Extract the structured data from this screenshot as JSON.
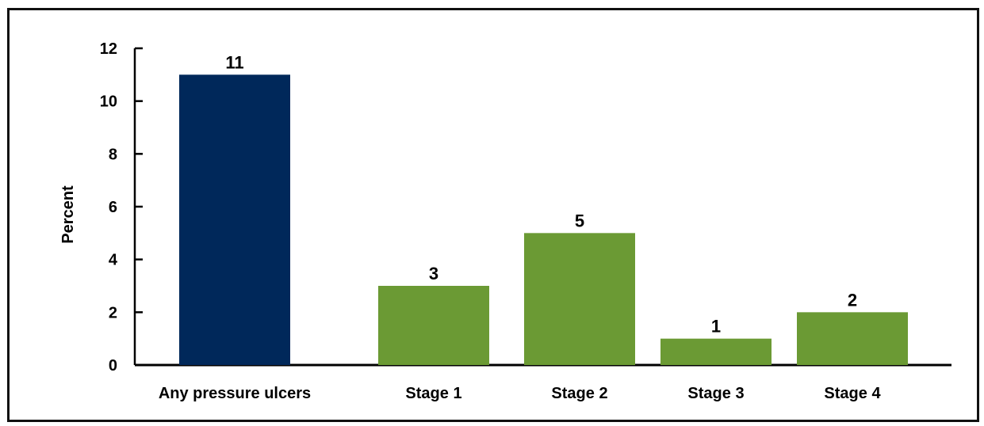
{
  "chart_data": {
    "type": "bar",
    "categories": [
      "Any pressure ulcers",
      "Stage 1",
      "Stage 2",
      "Stage 3",
      "Stage 4"
    ],
    "values": [
      11,
      3,
      5,
      1,
      2
    ],
    "data_labels": [
      "11",
      "3",
      "5",
      "1",
      "2"
    ],
    "bar_colors": [
      "#00285a",
      "#6b9a34",
      "#6b9a34",
      "#6b9a34",
      "#6b9a34"
    ],
    "title": "",
    "xlabel": "",
    "ylabel": "Percent",
    "ylim": [
      0,
      12
    ],
    "yticks": [
      0,
      2,
      4,
      6,
      8,
      10,
      12
    ],
    "grid": false,
    "legend": "none"
  }
}
